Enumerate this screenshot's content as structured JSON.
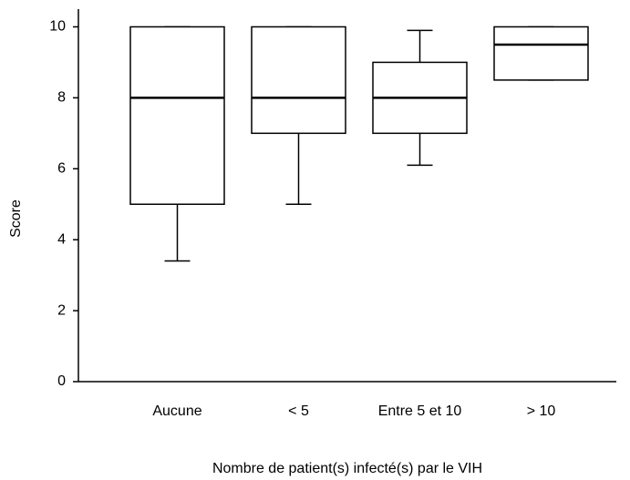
{
  "chart_data": {
    "type": "box",
    "xlabel": "Nombre de patient(s) infecté(s) par le VIH",
    "ylabel": "Score",
    "categories": [
      "Aucune",
      "< 5",
      "Entre 5 et 10",
      "> 10"
    ],
    "boxes": [
      {
        "min": 3.4,
        "q1": 5,
        "median": 8,
        "q3": 10,
        "max": 10
      },
      {
        "min": 5,
        "q1": 7,
        "median": 8,
        "q3": 10,
        "max": 10
      },
      {
        "min": 6.1,
        "q1": 7,
        "median": 8,
        "q3": 9,
        "max": 9.9
      },
      {
        "min": 8.5,
        "q1": 8.5,
        "median": 9.5,
        "q3": 10,
        "max": 10
      }
    ],
    "ylim": [
      0,
      10.5
    ],
    "yticks": [
      0,
      2,
      4,
      6,
      8,
      10
    ],
    "grid": false
  }
}
